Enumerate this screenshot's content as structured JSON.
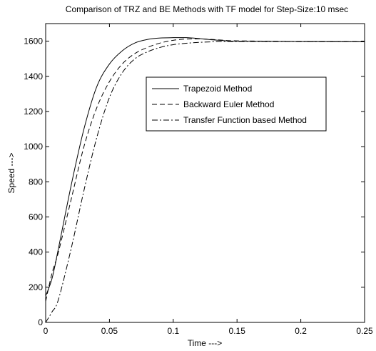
{
  "chart_data": {
    "type": "line",
    "title": "Comparison of TRZ and BE Methods with TF model for Step-Size:10 msec",
    "xlabel": "Time --->",
    "ylabel": "Speed --->",
    "xlim": [
      0,
      0.25
    ],
    "ylim": [
      0,
      1700
    ],
    "xticks": [
      0,
      0.05,
      0.1,
      0.15,
      0.2,
      0.25
    ],
    "xtick_labels": [
      "0",
      "0.05",
      "0.1",
      "0.15",
      "0.2",
      "0.25"
    ],
    "yticks": [
      0,
      200,
      400,
      600,
      800,
      1000,
      1200,
      1400,
      1600
    ],
    "ytick_labels": [
      "0",
      "200",
      "400",
      "600",
      "800",
      "1000",
      "1200",
      "1400",
      "1600"
    ],
    "grid": false,
    "legend_position": "center-right",
    "series": [
      {
        "name": "Trapezoid Method",
        "style": "solid",
        "x": [
          0,
          0.005,
          0.01,
          0.02,
          0.03,
          0.04,
          0.05,
          0.06,
          0.07,
          0.08,
          0.09,
          0.1,
          0.11,
          0.12,
          0.13,
          0.14,
          0.15,
          0.2,
          0.25
        ],
        "y": [
          150,
          250,
          420,
          780,
          1100,
          1340,
          1470,
          1545,
          1590,
          1610,
          1618,
          1620,
          1620,
          1615,
          1608,
          1603,
          1600,
          1598,
          1597
        ]
      },
      {
        "name": "Backward Euler Method",
        "style": "dashed",
        "x": [
          0,
          0.005,
          0.01,
          0.02,
          0.03,
          0.04,
          0.05,
          0.06,
          0.07,
          0.08,
          0.09,
          0.1,
          0.11,
          0.12,
          0.13,
          0.14,
          0.15,
          0.2,
          0.25
        ],
        "y": [
          120,
          280,
          400,
          700,
          1000,
          1220,
          1370,
          1470,
          1530,
          1565,
          1590,
          1605,
          1612,
          1613,
          1610,
          1605,
          1602,
          1598,
          1597
        ]
      },
      {
        "name": "Transfer Function based Method",
        "style": "dashdot",
        "x": [
          0,
          0.005,
          0.01,
          0.02,
          0.03,
          0.04,
          0.05,
          0.06,
          0.07,
          0.08,
          0.09,
          0.1,
          0.11,
          0.12,
          0.13,
          0.14,
          0.15,
          0.2,
          0.25
        ],
        "y": [
          0,
          60,
          130,
          420,
          750,
          1050,
          1280,
          1420,
          1500,
          1540,
          1565,
          1580,
          1588,
          1593,
          1596,
          1598,
          1598,
          1597,
          1597
        ]
      }
    ]
  }
}
